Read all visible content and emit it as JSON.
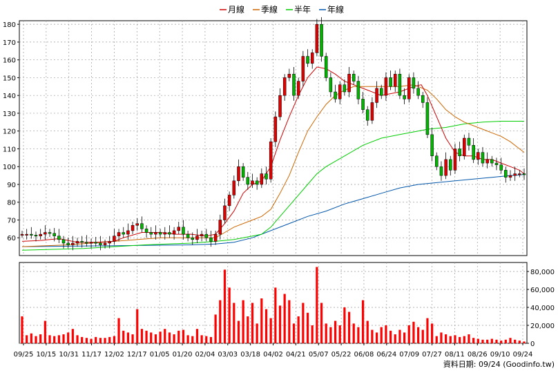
{
  "chart_data": {
    "type": "candlestick",
    "legend": [
      {
        "name": "月線",
        "color": "#cc0000"
      },
      {
        "name": "季線",
        "color": "#cc6600"
      },
      {
        "name": "半年",
        "color": "#00cc00"
      },
      {
        "name": "年線",
        "color": "#0055aa"
      }
    ],
    "x_ticks": [
      "09/25",
      "10/15",
      "10/31",
      "11/17",
      "12/02",
      "12/17",
      "01/05",
      "01/20",
      "02/04",
      "03/03",
      "03/18",
      "04/02",
      "04/21",
      "05/07",
      "05/22",
      "06/08",
      "06/24",
      "07/09",
      "07/27",
      "08/11",
      "08/26",
      "09/10",
      "09/24"
    ],
    "price_axis": {
      "ylim": [
        50,
        182
      ],
      "ticks": [
        60,
        70,
        80,
        90,
        100,
        110,
        120,
        130,
        140,
        150,
        160,
        170,
        180
      ]
    },
    "volume_axis": {
      "ylim": [
        0,
        90000
      ],
      "ticks": [
        0,
        20000,
        40000,
        60000,
        80000
      ],
      "tick_labels": [
        "0",
        "20,000",
        "40,000",
        "60,000",
        "80,000"
      ]
    },
    "price_series": [
      [
        0,
        62
      ],
      [
        3,
        62
      ],
      [
        6,
        61.5
      ],
      [
        9,
        61
      ],
      [
        12,
        62
      ],
      [
        15,
        63
      ],
      [
        18,
        62.5
      ],
      [
        21,
        61
      ],
      [
        24,
        59
      ],
      [
        27,
        57
      ],
      [
        30,
        56
      ],
      [
        33,
        57
      ],
      [
        36,
        58
      ],
      [
        39,
        57.5
      ],
      [
        42,
        57
      ],
      [
        45,
        57.5
      ],
      [
        48,
        57
      ],
      [
        51,
        56
      ],
      [
        54,
        57
      ],
      [
        57,
        58
      ],
      [
        60,
        61
      ],
      [
        63,
        63
      ],
      [
        66,
        62
      ],
      [
        69,
        64
      ],
      [
        72,
        67
      ],
      [
        75,
        68
      ],
      [
        78,
        65
      ],
      [
        81,
        63
      ],
      [
        84,
        62
      ],
      [
        87,
        63
      ],
      [
        90,
        62
      ],
      [
        93,
        63
      ],
      [
        96,
        62
      ],
      [
        99,
        64
      ],
      [
        102,
        66
      ],
      [
        105,
        62
      ],
      [
        108,
        60
      ],
      [
        111,
        59
      ],
      [
        114,
        61
      ],
      [
        117,
        62
      ],
      [
        120,
        60
      ],
      [
        123,
        58
      ],
      [
        126,
        62
      ],
      [
        129,
        70
      ],
      [
        132,
        78
      ],
      [
        135,
        84
      ],
      [
        138,
        92
      ],
      [
        141,
        100
      ],
      [
        144,
        94
      ],
      [
        147,
        90
      ],
      [
        150,
        92
      ],
      [
        153,
        90
      ],
      [
        156,
        96
      ],
      [
        159,
        93
      ],
      [
        162,
        114
      ],
      [
        165,
        128
      ],
      [
        168,
        140
      ],
      [
        171,
        150
      ],
      [
        174,
        152
      ],
      [
        177,
        140
      ],
      [
        180,
        148
      ],
      [
        183,
        162
      ],
      [
        186,
        158
      ],
      [
        189,
        164
      ],
      [
        192,
        180
      ],
      [
        195,
        162
      ],
      [
        198,
        150
      ],
      [
        201,
        142
      ],
      [
        204,
        138
      ],
      [
        207,
        146
      ],
      [
        210,
        142
      ],
      [
        213,
        152
      ],
      [
        216,
        148
      ],
      [
        219,
        138
      ],
      [
        222,
        132
      ],
      [
        225,
        126
      ],
      [
        228,
        136
      ],
      [
        231,
        144
      ],
      [
        234,
        140
      ],
      [
        237,
        150
      ],
      [
        240,
        145
      ],
      [
        243,
        152
      ],
      [
        246,
        140
      ],
      [
        249,
        138
      ],
      [
        252,
        150
      ],
      [
        255,
        144
      ],
      [
        258,
        140
      ],
      [
        261,
        136
      ],
      [
        264,
        118
      ],
      [
        267,
        106
      ],
      [
        270,
        100
      ],
      [
        273,
        95
      ],
      [
        276,
        104
      ],
      [
        279,
        98
      ],
      [
        282,
        110
      ],
      [
        285,
        106
      ],
      [
        288,
        116
      ],
      [
        291,
        112
      ],
      [
        294,
        104
      ],
      [
        297,
        108
      ],
      [
        300,
        102
      ],
      [
        303,
        104
      ],
      [
        306,
        102
      ],
      [
        309,
        101
      ],
      [
        312,
        98
      ],
      [
        315,
        94
      ],
      [
        318,
        95
      ],
      [
        321,
        96
      ],
      [
        324,
        96
      ],
      [
        327,
        95.5
      ]
    ],
    "ma_month": [
      [
        0,
        58
      ],
      [
        12,
        58.5
      ],
      [
        24,
        59.5
      ],
      [
        36,
        57.5
      ],
      [
        48,
        57.5
      ],
      [
        60,
        58
      ],
      [
        66,
        60
      ],
      [
        78,
        63
      ],
      [
        90,
        63
      ],
      [
        100,
        62
      ],
      [
        110,
        62
      ],
      [
        120,
        61
      ],
      [
        126,
        62
      ],
      [
        132,
        68
      ],
      [
        138,
        75
      ],
      [
        144,
        85
      ],
      [
        150,
        90
      ],
      [
        156,
        92
      ],
      [
        162,
        100
      ],
      [
        168,
        115
      ],
      [
        174,
        128
      ],
      [
        180,
        140
      ],
      [
        186,
        150
      ],
      [
        192,
        156
      ],
      [
        198,
        155
      ],
      [
        204,
        152
      ],
      [
        210,
        148
      ],
      [
        222,
        144
      ],
      [
        234,
        140
      ],
      [
        246,
        142
      ],
      [
        255,
        145
      ],
      [
        260,
        146
      ],
      [
        264,
        140
      ],
      [
        270,
        128
      ],
      [
        276,
        116
      ],
      [
        282,
        108
      ],
      [
        288,
        106
      ],
      [
        294,
        106
      ],
      [
        300,
        104
      ],
      [
        306,
        104
      ],
      [
        312,
        102
      ],
      [
        318,
        100
      ],
      [
        324,
        98
      ],
      [
        327,
        96
      ]
    ],
    "ma_quarter": [
      [
        0,
        55
      ],
      [
        30,
        56
      ],
      [
        60,
        58
      ],
      [
        90,
        60
      ],
      [
        110,
        60
      ],
      [
        126,
        60
      ],
      [
        132,
        63
      ],
      [
        138,
        66
      ],
      [
        150,
        70
      ],
      [
        156,
        72
      ],
      [
        162,
        76
      ],
      [
        168,
        85
      ],
      [
        174,
        95
      ],
      [
        180,
        108
      ],
      [
        186,
        120
      ],
      [
        192,
        128
      ],
      [
        198,
        135
      ],
      [
        204,
        140
      ],
      [
        210,
        143
      ],
      [
        216,
        145
      ],
      [
        222,
        145
      ],
      [
        234,
        145
      ],
      [
        246,
        145
      ],
      [
        255,
        146
      ],
      [
        264,
        143
      ],
      [
        270,
        138
      ],
      [
        276,
        132
      ],
      [
        282,
        128
      ],
      [
        288,
        125
      ],
      [
        294,
        123
      ],
      [
        300,
        121
      ],
      [
        306,
        119
      ],
      [
        312,
        117
      ],
      [
        318,
        114
      ],
      [
        324,
        110
      ],
      [
        327,
        108
      ]
    ],
    "ma_half": [
      [
        0,
        53
      ],
      [
        40,
        54
      ],
      [
        80,
        56
      ],
      [
        110,
        57
      ],
      [
        126,
        58
      ],
      [
        138,
        59
      ],
      [
        150,
        61
      ],
      [
        156,
        62
      ],
      [
        162,
        66
      ],
      [
        168,
        72
      ],
      [
        174,
        78
      ],
      [
        180,
        84
      ],
      [
        186,
        90
      ],
      [
        192,
        96
      ],
      [
        198,
        100
      ],
      [
        210,
        106
      ],
      [
        222,
        112
      ],
      [
        234,
        116
      ],
      [
        246,
        118
      ],
      [
        258,
        120
      ],
      [
        264,
        121
      ],
      [
        276,
        122
      ],
      [
        288,
        124
      ],
      [
        300,
        125
      ],
      [
        312,
        125.5
      ],
      [
        327,
        125.5
      ]
    ],
    "ma_year": [
      [
        0,
        55
      ],
      [
        60,
        55.5
      ],
      [
        110,
        56
      ],
      [
        126,
        56.5
      ],
      [
        138,
        57.5
      ],
      [
        150,
        60
      ],
      [
        162,
        64
      ],
      [
        174,
        68
      ],
      [
        186,
        72
      ],
      [
        198,
        75
      ],
      [
        210,
        79
      ],
      [
        222,
        82
      ],
      [
        234,
        85
      ],
      [
        246,
        88
      ],
      [
        258,
        90
      ],
      [
        270,
        91
      ],
      [
        282,
        92
      ],
      [
        294,
        93
      ],
      [
        306,
        94
      ],
      [
        318,
        95
      ],
      [
        327,
        95.5
      ]
    ],
    "volume": [
      [
        0,
        30000
      ],
      [
        3,
        9000
      ],
      [
        6,
        11000
      ],
      [
        9,
        8000
      ],
      [
        12,
        10000
      ],
      [
        15,
        25000
      ],
      [
        18,
        9000
      ],
      [
        21,
        8000
      ],
      [
        24,
        9000
      ],
      [
        27,
        10000
      ],
      [
        30,
        12000
      ],
      [
        33,
        16000
      ],
      [
        36,
        9000
      ],
      [
        39,
        7000
      ],
      [
        42,
        6000
      ],
      [
        45,
        5000
      ],
      [
        48,
        7000
      ],
      [
        51,
        6000
      ],
      [
        54,
        6000
      ],
      [
        57,
        7000
      ],
      [
        60,
        8000
      ],
      [
        63,
        28000
      ],
      [
        66,
        14000
      ],
      [
        69,
        12000
      ],
      [
        72,
        10000
      ],
      [
        75,
        38000
      ],
      [
        78,
        16000
      ],
      [
        81,
        14000
      ],
      [
        84,
        12000
      ],
      [
        87,
        10000
      ],
      [
        90,
        13000
      ],
      [
        93,
        16000
      ],
      [
        96,
        12000
      ],
      [
        99,
        10000
      ],
      [
        102,
        14000
      ],
      [
        105,
        15000
      ],
      [
        108,
        9000
      ],
      [
        111,
        8000
      ],
      [
        114,
        16000
      ],
      [
        117,
        9000
      ],
      [
        120,
        8000
      ],
      [
        123,
        7000
      ],
      [
        126,
        32000
      ],
      [
        129,
        48000
      ],
      [
        132,
        82000
      ],
      [
        135,
        62000
      ],
      [
        138,
        45000
      ],
      [
        141,
        25000
      ],
      [
        144,
        48000
      ],
      [
        147,
        30000
      ],
      [
        150,
        45000
      ],
      [
        153,
        22000
      ],
      [
        156,
        50000
      ],
      [
        159,
        38000
      ],
      [
        162,
        28000
      ],
      [
        165,
        62000
      ],
      [
        168,
        42000
      ],
      [
        171,
        55000
      ],
      [
        174,
        48000
      ],
      [
        177,
        22000
      ],
      [
        180,
        30000
      ],
      [
        183,
        45000
      ],
      [
        186,
        34000
      ],
      [
        189,
        20000
      ],
      [
        192,
        85000
      ],
      [
        195,
        45000
      ],
      [
        198,
        22000
      ],
      [
        201,
        18000
      ],
      [
        204,
        25000
      ],
      [
        207,
        20000
      ],
      [
        210,
        40000
      ],
      [
        213,
        35000
      ],
      [
        216,
        22000
      ],
      [
        219,
        18000
      ],
      [
        222,
        48000
      ],
      [
        225,
        25000
      ],
      [
        228,
        15000
      ],
      [
        231,
        12000
      ],
      [
        234,
        18000
      ],
      [
        237,
        20000
      ],
      [
        240,
        14000
      ],
      [
        243,
        10000
      ],
      [
        246,
        15000
      ],
      [
        249,
        12000
      ],
      [
        252,
        20000
      ],
      [
        255,
        24000
      ],
      [
        258,
        18000
      ],
      [
        261,
        15000
      ],
      [
        264,
        28000
      ],
      [
        267,
        22000
      ],
      [
        270,
        8000
      ],
      [
        273,
        12000
      ],
      [
        276,
        10000
      ],
      [
        279,
        8000
      ],
      [
        282,
        9000
      ],
      [
        285,
        7000
      ],
      [
        288,
        8000
      ],
      [
        291,
        10000
      ],
      [
        294,
        6000
      ],
      [
        297,
        5000
      ],
      [
        300,
        4000
      ],
      [
        303,
        4000
      ],
      [
        306,
        5000
      ],
      [
        309,
        4000
      ],
      [
        312,
        3000
      ],
      [
        315,
        4000
      ],
      [
        318,
        6000
      ],
      [
        321,
        4000
      ],
      [
        324,
        3000
      ],
      [
        327,
        2000
      ]
    ],
    "x_max": 327,
    "source": "資料日期: 09/24  (Goodinfo.tw)"
  }
}
